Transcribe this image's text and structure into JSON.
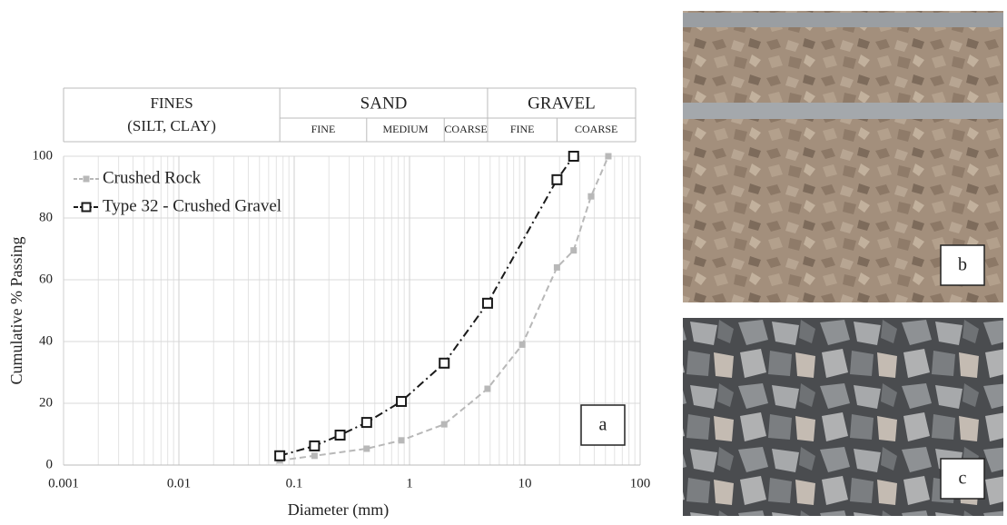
{
  "chart_data": {
    "type": "line",
    "log_x": true,
    "grid": true,
    "minor_grid": true,
    "x_label": "Diameter (mm)",
    "y_label": "Cumulative % Passing",
    "xlim": [
      0.001,
      100
    ],
    "xticks": [
      0.001,
      0.01,
      0.1,
      1,
      10,
      100
    ],
    "ylim": [
      0,
      100
    ],
    "yticks": [
      0,
      20,
      40,
      60,
      80,
      100
    ],
    "legend": "upper left",
    "annotation": "a",
    "soil_classes": [
      {
        "name": [
          "FINES",
          "(SILT, CLAY)"
        ],
        "range": [
          0.001,
          0.075
        ],
        "subclasses": []
      },
      {
        "name": [
          "SAND"
        ],
        "range": [
          0.075,
          4.75
        ],
        "subclasses": [
          {
            "name": "FINE",
            "range": [
              0.075,
              0.425
            ]
          },
          {
            "name": "MEDIUM",
            "range": [
              0.425,
              2
            ]
          },
          {
            "name": "COARSE",
            "range": [
              2,
              4.75
            ]
          }
        ]
      },
      {
        "name": [
          "GRAVEL"
        ],
        "range": [
          4.75,
          100
        ],
        "subclasses": [
          {
            "name": "FINE",
            "range": [
              4.75,
              19
            ]
          },
          {
            "name": "COARSE",
            "range": [
              19,
              100
            ]
          }
        ]
      }
    ],
    "series": [
      {
        "name": "Crushed Rock",
        "color": "#b8b8b8",
        "line_style": "dashed",
        "marker": "filled-square",
        "x": [
          0.075,
          0.15,
          0.425,
          0.85,
          2,
          4.75,
          9.5,
          19,
          26.5,
          37.5,
          53
        ],
        "values": [
          1.5,
          3,
          5.3,
          8,
          13.2,
          24.7,
          39,
          64,
          69.5,
          87,
          100
        ]
      },
      {
        "name": "Type 32 - Crushed Gravel",
        "color": "#1a1a1a",
        "line_style": "dash-dot",
        "marker": "hollow-square",
        "x": [
          0.075,
          0.15,
          0.25,
          0.425,
          0.85,
          2,
          4.75,
          19,
          26.5
        ],
        "values": [
          3,
          6.2,
          9.7,
          13.8,
          20.6,
          33,
          52.4,
          92.4,
          100
        ]
      }
    ]
  },
  "photos": [
    {
      "label": "b"
    },
    {
      "label": "c"
    }
  ]
}
